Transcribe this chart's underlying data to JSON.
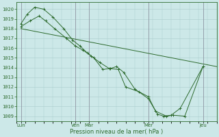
{
  "bg_color": "#cce8e8",
  "grid_color": "#aacccc",
  "line_color": "#2d6a2d",
  "ylabel_text": "Pression niveau de la mer( hPa )",
  "ylim": [
    1008.5,
    1020.7
  ],
  "yticks": [
    1009,
    1010,
    1011,
    1012,
    1013,
    1014,
    1015,
    1016,
    1017,
    1018,
    1019,
    1020
  ],
  "xlim": [
    0,
    22
  ],
  "xtick_positions": [
    0.5,
    6.5,
    8.0,
    14.5,
    20.5
  ],
  "xtick_labels": [
    "Lun",
    "Ven",
    "Mar",
    "Mer",
    "Jeu"
  ],
  "vlines": [
    0.5,
    6.5,
    8.0,
    14.5,
    20.5
  ],
  "line_smooth": {
    "x": [
      0.5,
      22
    ],
    "y": [
      1018.0,
      1014.1
    ]
  },
  "line_detailed1": {
    "x": [
      0.5,
      1.2,
      2.0,
      3.0,
      4.0,
      5.2,
      6.2,
      7.0,
      7.8,
      8.5,
      9.5,
      10.3,
      11.0,
      11.8,
      13.0,
      14.5,
      15.5,
      16.2,
      17.0,
      18.0,
      20.5
    ],
    "y": [
      1018.5,
      1019.5,
      1020.2,
      1020.0,
      1019.2,
      1018.0,
      1016.8,
      1016.2,
      1015.5,
      1015.0,
      1013.8,
      1013.9,
      1014.1,
      1013.5,
      1011.8,
      1010.8,
      1009.2,
      1009.0,
      1009.1,
      1009.8,
      1014.1
    ]
  },
  "line_detailed2": {
    "x": [
      0.5,
      1.5,
      2.5,
      3.2,
      4.2,
      5.5,
      6.5,
      7.3,
      8.2,
      9.2,
      10.2,
      11.2,
      12.0,
      13.5,
      14.5,
      15.3,
      16.5,
      17.2,
      18.5,
      20.5
    ],
    "y": [
      1018.2,
      1018.8,
      1019.3,
      1018.8,
      1018.0,
      1017.0,
      1016.2,
      1015.8,
      1015.2,
      1014.5,
      1013.9,
      1013.8,
      1012.0,
      1011.5,
      1011.0,
      1009.5,
      1009.0,
      1009.1,
      1009.0,
      1014.1
    ]
  }
}
